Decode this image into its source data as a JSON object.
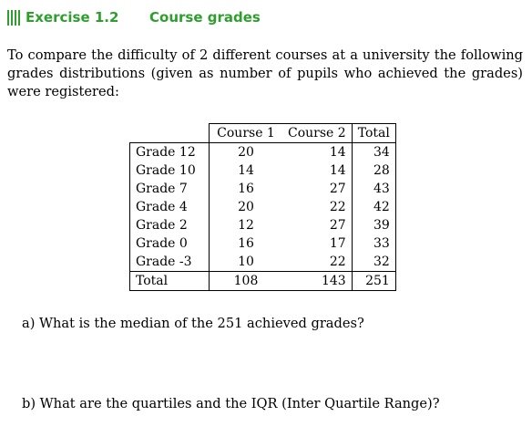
{
  "exercise": {
    "title": "Exercise 1.2",
    "subject": "Course grades"
  },
  "intro": "To compare the difficulty of 2 different courses at a university the following grades distributions (given as number of pupils who achieved the grades) were registered:",
  "table": {
    "headers": [
      "Course 1",
      "Course 2",
      "Total"
    ],
    "rows": [
      {
        "label": "Grade 12",
        "c1": "20",
        "c2": "14",
        "total": "34"
      },
      {
        "label": "Grade 10",
        "c1": "14",
        "c2": "14",
        "total": "28"
      },
      {
        "label": "Grade 7",
        "c1": "16",
        "c2": "27",
        "total": "43"
      },
      {
        "label": "Grade 4",
        "c1": "20",
        "c2": "22",
        "total": "42"
      },
      {
        "label": "Grade 2",
        "c1": "12",
        "c2": "27",
        "total": "39"
      },
      {
        "label": "Grade 0",
        "c1": "16",
        "c2": "17",
        "total": "33"
      },
      {
        "label": "Grade -3",
        "c1": "10",
        "c2": "22",
        "total": "32"
      }
    ],
    "total_row": {
      "label": "Total",
      "c1": "108",
      "c2": "143",
      "total": "251"
    }
  },
  "questions": {
    "a": "a) What is the median of the 251 achieved grades?",
    "b": "b) What are the quartiles and the IQR (Inter Quartile Range)?"
  }
}
